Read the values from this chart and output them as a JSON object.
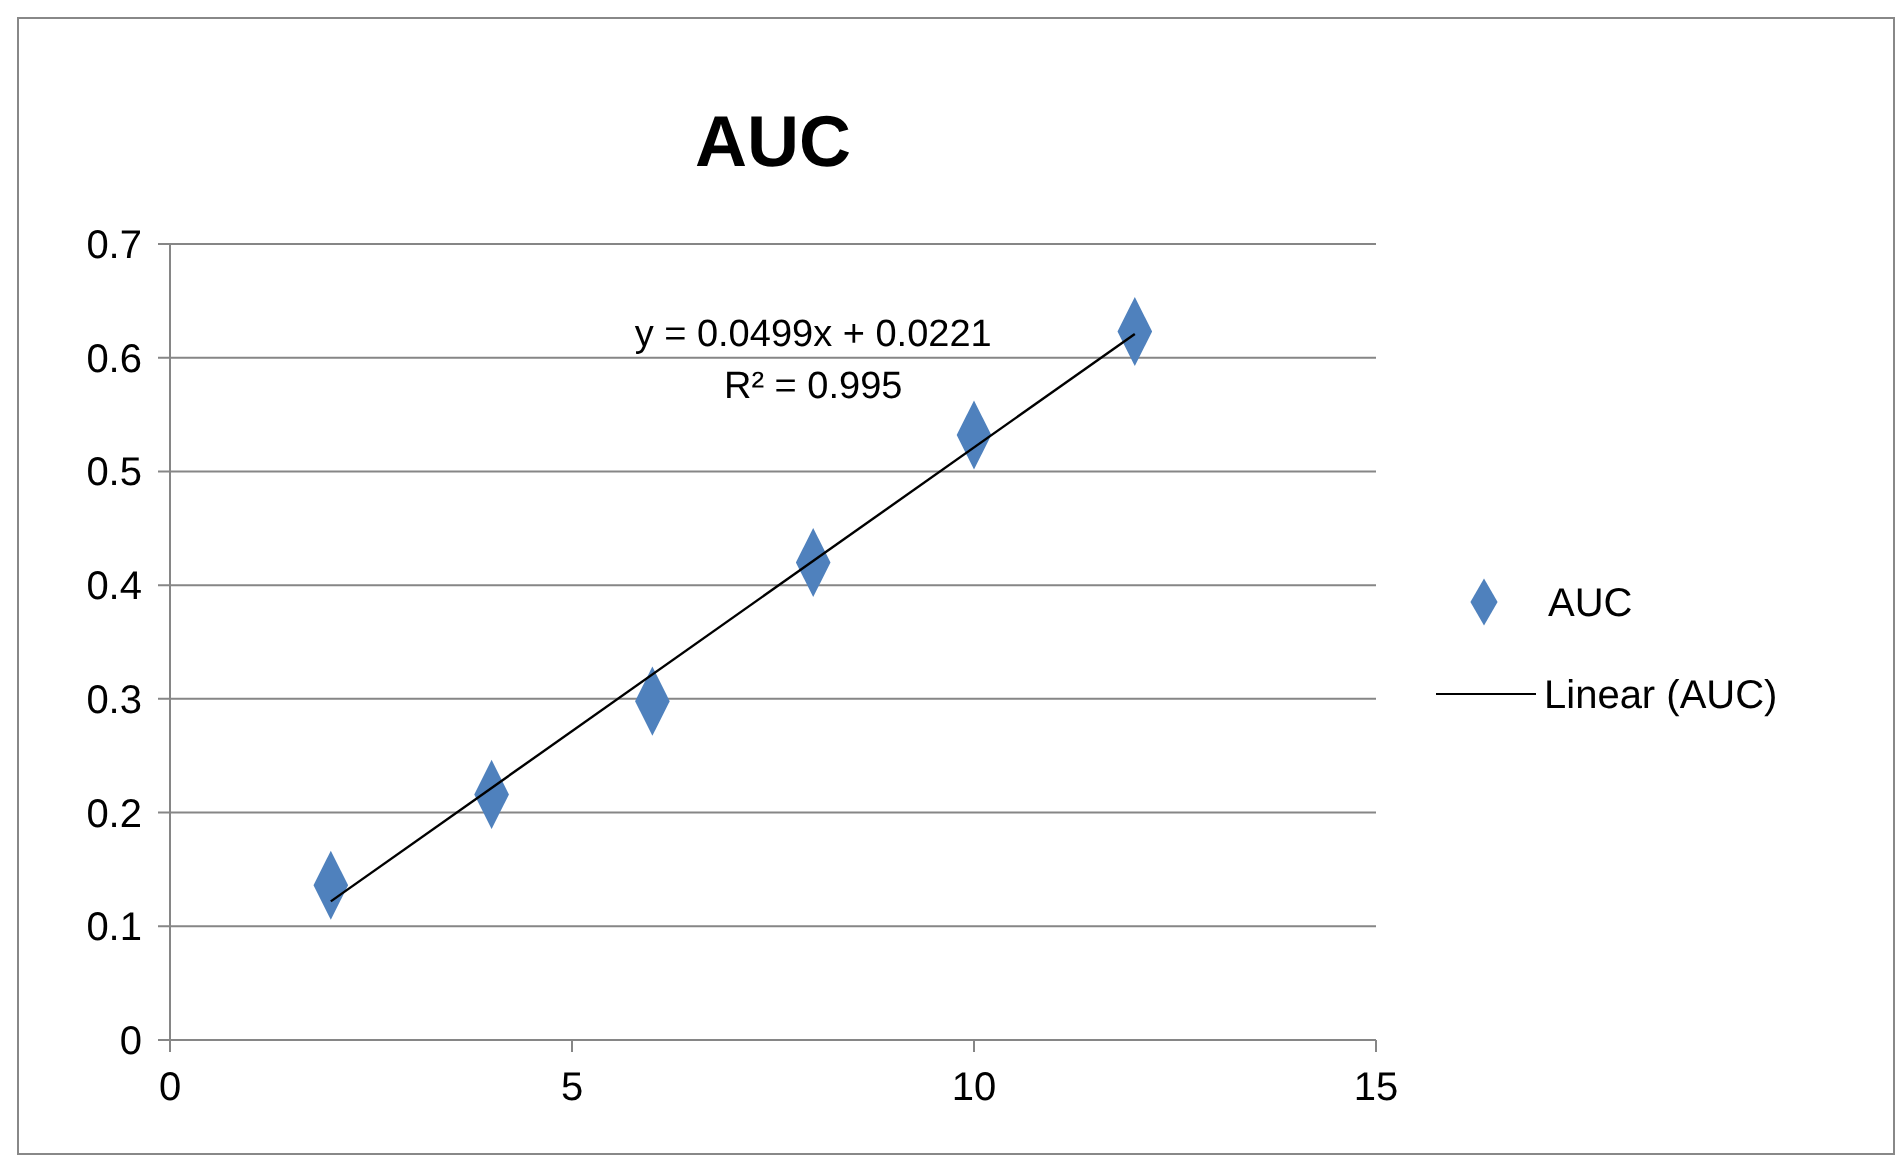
{
  "chart_data": {
    "type": "scatter",
    "title": "AUC",
    "x": [
      2,
      4,
      6,
      8,
      10,
      12
    ],
    "series": [
      {
        "name": "AUC",
        "color": "#4f81bd",
        "values": [
          0.136,
          0.216,
          0.298,
          0.42,
          0.532,
          0.623
        ],
        "marker": "diamond"
      },
      {
        "name": "Linear (AUC)",
        "type": "line",
        "color": "#000000",
        "x": [
          2,
          12
        ],
        "values": [
          0.1219,
          0.6209
        ],
        "marker": "none"
      }
    ],
    "annotations": [
      "y = 0.0499x + 0.0221",
      "R² = 0.995"
    ],
    "xlim": [
      0,
      15
    ],
    "xticks": [
      0,
      5,
      10,
      15
    ],
    "ylim": [
      0,
      0.7
    ],
    "yticks": [
      0,
      0.1,
      0.2,
      0.3,
      0.4,
      0.5,
      0.6,
      0.7
    ],
    "grid": "y",
    "legend": "right"
  }
}
